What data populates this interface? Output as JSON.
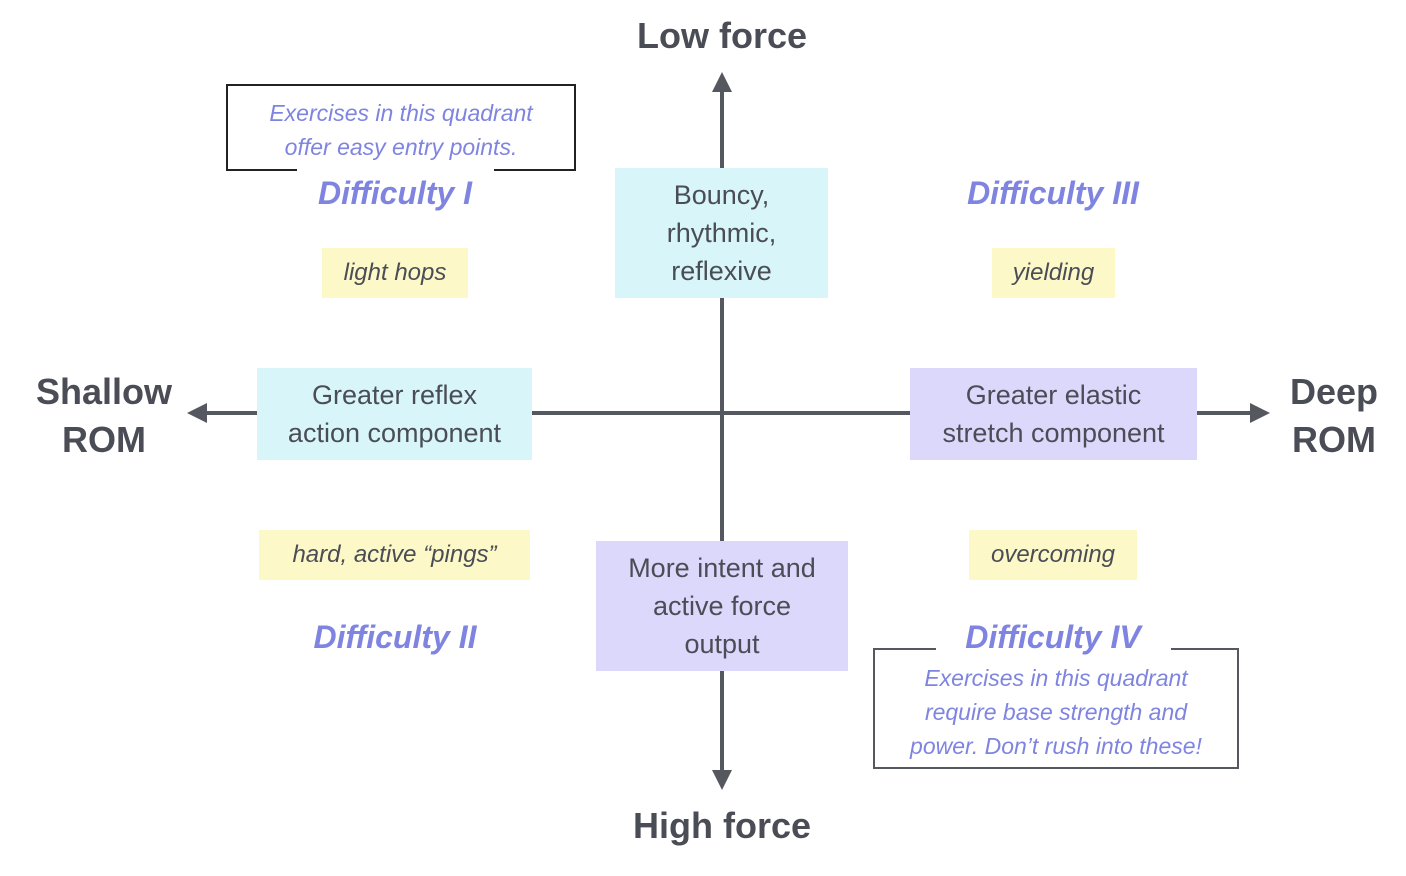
{
  "axes": {
    "top": "Low force",
    "bottom": "High force",
    "left": [
      "Shallow",
      "ROM"
    ],
    "right": [
      "Deep",
      "ROM"
    ]
  },
  "axis_boxes": {
    "top": [
      "Bouncy,",
      "rhythmic,",
      "reflexive"
    ],
    "bottom": [
      "More intent and",
      "active force",
      "output"
    ],
    "left": [
      "Greater reflex",
      "action component"
    ],
    "right": [
      "Greater elastic",
      "stretch component"
    ]
  },
  "quadrants": {
    "q1": {
      "title": "Difficulty I",
      "tag": "light hops",
      "note": [
        "Exercises in this quadrant",
        "offer easy entry points."
      ]
    },
    "q2": {
      "title": "Difficulty II",
      "tag": "hard, active “pings”"
    },
    "q3": {
      "title": "Difficulty III",
      "tag": "yielding"
    },
    "q4": {
      "title": "Difficulty IV",
      "tag": "overcoming",
      "note": [
        "Exercises in this quadrant",
        "require base strength and",
        "power. Don’t rush into these!"
      ]
    }
  },
  "colors": {
    "axis": "#55585f",
    "accent": "#7e84e0",
    "cyan_box": "#d8f6f9",
    "lavender_box": "#dcd8fc",
    "tag_yellow": "#fdf8c8"
  }
}
